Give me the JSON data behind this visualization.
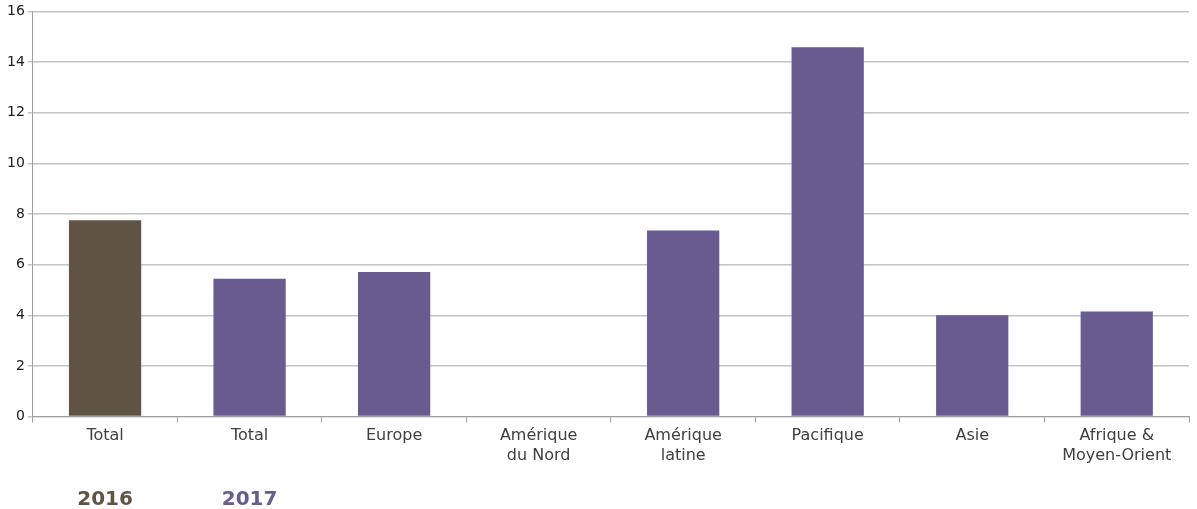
{
  "chart_data": {
    "type": "bar",
    "categories": [
      "Total",
      "Total",
      "Europe",
      "Amérique du Nord",
      "Amérique latine",
      "Pacifique",
      "Asie",
      "Afrique & Moyen-Orient"
    ],
    "series": [
      {
        "name": "2016",
        "color": "#605445",
        "values": [
          7.75,
          null,
          null,
          null,
          null,
          null,
          null,
          null
        ]
      },
      {
        "name": "2017",
        "color": "#675b8f",
        "values": [
          null,
          5.44,
          5.71,
          null,
          7.35,
          14.58,
          4.0,
          4.15
        ]
      }
    ],
    "ylim": [
      0,
      16
    ],
    "yticks": [
      0,
      2,
      4,
      6,
      8,
      10,
      12,
      14,
      16
    ],
    "grid": "y",
    "legend": false
  }
}
